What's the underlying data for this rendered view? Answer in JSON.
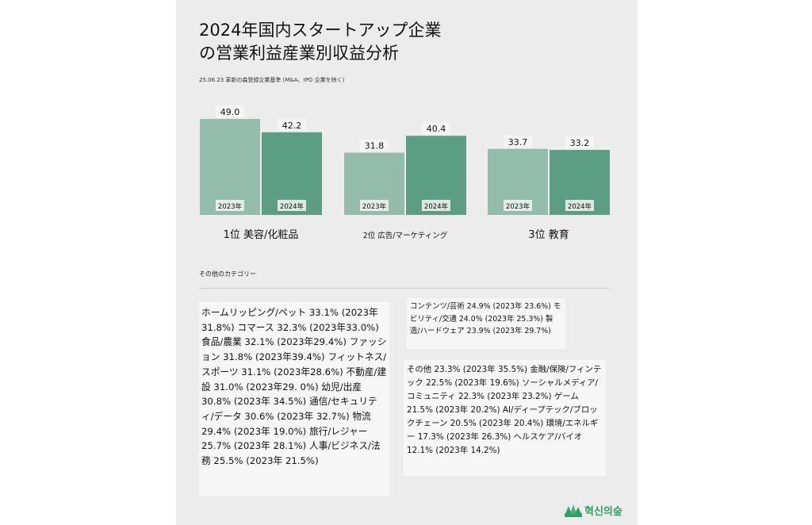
{
  "title": "2024年国内スタートアップ企業の営業利益産業別収益分析",
  "subtitle": "25.06.23 革新の森登録企業基準 (M&A、IPO 企業を除く)",
  "colors": {
    "panel": "#ececec",
    "bar_2023": "#94bcac",
    "bar_2024": "#5b9e83",
    "logo": "#2ea067"
  },
  "chart_data": {
    "type": "bar",
    "categories": [
      "1位 美容/化粧品",
      "2位 広告/マーケティング",
      "3位 教育"
    ],
    "series": [
      {
        "name": "2023年",
        "values": [
          49.0,
          31.8,
          33.7
        ]
      },
      {
        "name": "2024年",
        "values": [
          42.2,
          40.4,
          33.2
        ]
      }
    ],
    "value_labels": [
      [
        "49.0",
        "42.2"
      ],
      [
        "31.8",
        "40.4"
      ],
      [
        "33.7",
        "33.2"
      ]
    ],
    "bar_labels": [
      "2023年",
      "2024年"
    ],
    "xlabel": "",
    "ylabel": "",
    "grid": false,
    "legend": "none"
  },
  "others": {
    "label": "その他のカテゴリー",
    "box1": "ホームリッピング/ペット 33.1% (2023年31.8%) コマース 32.3% (2023年33.0%) 食品/農業 32.1% (2023年29.4%) ファッション 31.8% (2023年39.4%) フィットネス/スポーツ 31.1% (2023年28.6%) 不動産/建設 31.0% (2023年29. 0%) 幼児/出産 30.8% (2023年 34.5%) 通信/セキュリティ/データ 30.6% (2023年 32.7%) 物流 29.4% (2023年 19.0%) 旅行/レジャー 25.7% (2023年 28.1%) 人事/ビジネス/法務 25.5% (2023年 21.5%)",
    "box2": "コンテンツ/芸術 24.9% (2023年 23.6%) モビリティ/交通 24.0% (2023年 25.3%) 製造/ハードウェア 23.9% (2023年 29.7%)",
    "box3": "その他 23.3% (2023年 35.5%) 金融/保険/フィンテック 22.5% (2023年 19.6%) ソーシャルメディア/コミュニティ 22.3% (2023年 23.2%) ゲーム 21.5% (2023年 20.2%) AI/ディープテック/ブロックチェーン 20.5% (2023年 20.4%) 環境/エネルギー 17.3% (2023年 26.3%) ヘルスケア/バイオ 12.1% (2023年 14.2%)"
  },
  "logo": {
    "text": "혁신의숲",
    "icon": "forest-icon"
  }
}
